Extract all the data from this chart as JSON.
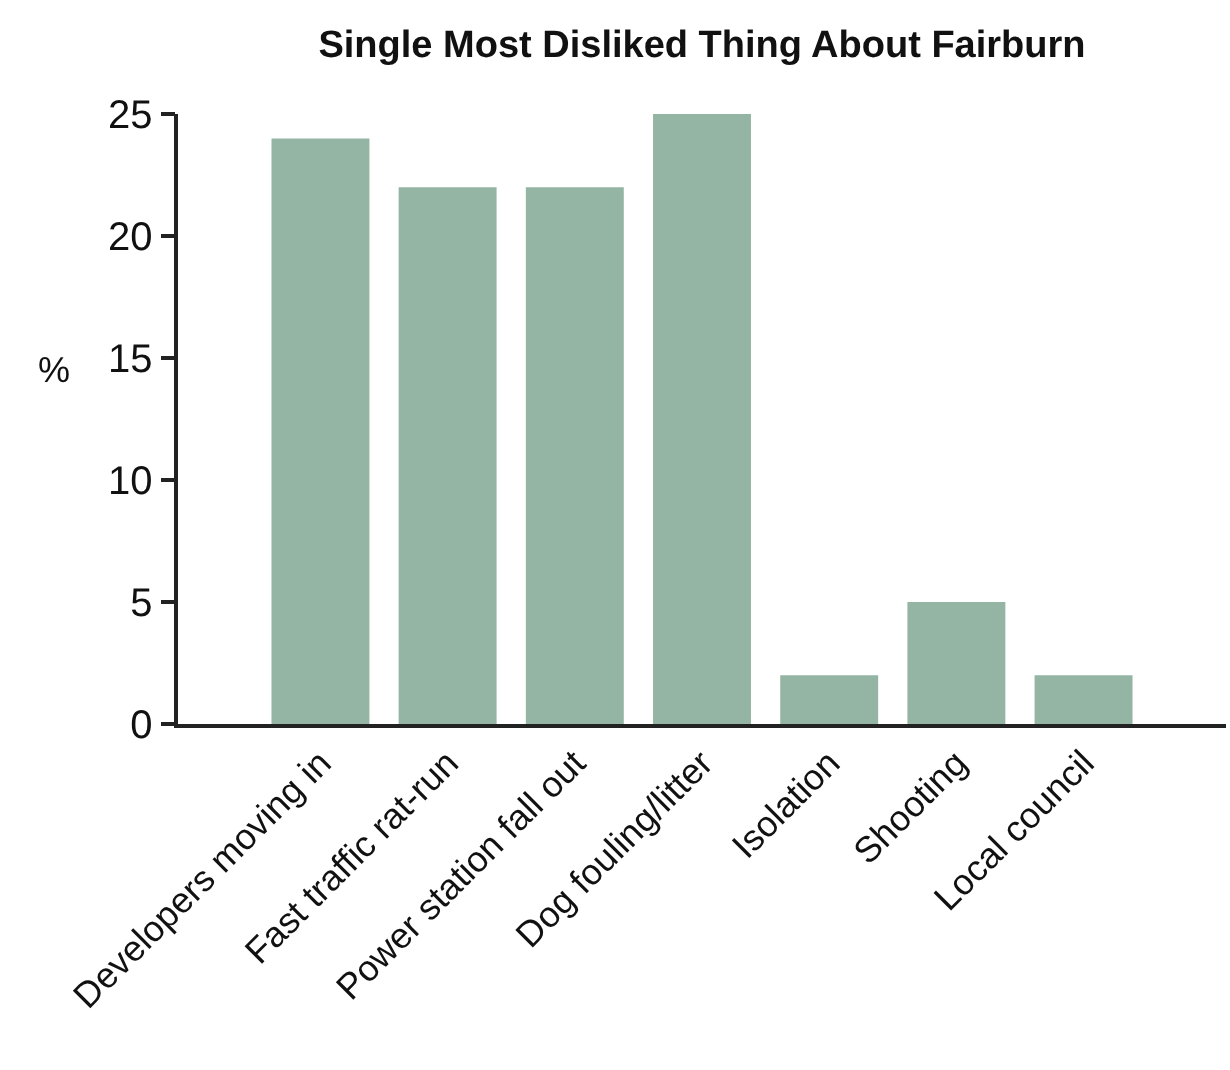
{
  "chart_data": {
    "type": "bar",
    "title": "Single Most Disliked Thing About Fairburn",
    "ylabel": "%",
    "categories": [
      "Developers moving in",
      "Fast traffic rat-run",
      "Power station fall out",
      "Dog fouling/litter",
      "Isolation",
      "Shooting",
      "Local council"
    ],
    "values": [
      24,
      22,
      22,
      25,
      2,
      5,
      2
    ],
    "color": "#94b5a3",
    "ylim": [
      0,
      25
    ],
    "yticks": [
      0,
      5,
      10,
      15,
      20,
      25
    ]
  }
}
